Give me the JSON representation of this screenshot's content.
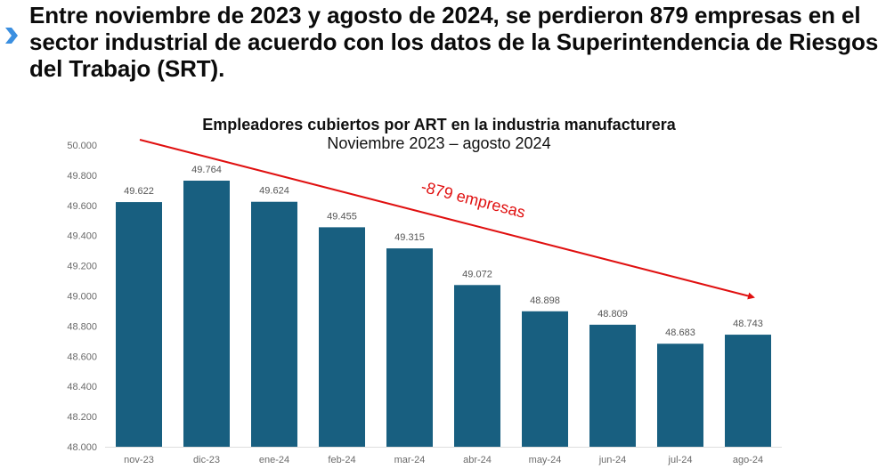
{
  "headline": {
    "icon": "chevron-right-icon",
    "text": "Entre noviembre de 2023 y agosto de 2024, se perdieron 879 empresas en el sector industrial de acuerdo con los datos de la Superintendencia de Riesgos del Trabajo (SRT)."
  },
  "colors": {
    "bar": "#185f80",
    "arrow": "#e01010",
    "bullet": "#3b8fe0",
    "axis_text": "#6a6a6a"
  },
  "chart_data": {
    "type": "bar",
    "title": "Empleadores cubiertos por ART en la industria manufacturera",
    "subtitle": "Noviembre 2023 – agosto 2024",
    "xlabel": "",
    "ylabel": "",
    "categories": [
      "nov-23",
      "dic-23",
      "ene-24",
      "feb-24",
      "mar-24",
      "abr-24",
      "may-24",
      "jun-24",
      "jul-24",
      "ago-24"
    ],
    "values": [
      49622,
      49764,
      49624,
      49455,
      49315,
      49072,
      48898,
      48809,
      48683,
      48743
    ],
    "value_labels": [
      "49.622",
      "49.764",
      "49.624",
      "49.455",
      "49.315",
      "49.072",
      "48.898",
      "48.809",
      "48.683",
      "48.743"
    ],
    "ylim": [
      48000,
      50000
    ],
    "yticks": [
      48000,
      48200,
      48400,
      48600,
      48800,
      49000,
      49200,
      49400,
      49600,
      49800,
      50000
    ],
    "ytick_labels": [
      "48.000",
      "48.200",
      "48.400",
      "48.600",
      "48.800",
      "49.000",
      "49.200",
      "49.400",
      "49.600",
      "49.800",
      "50.000"
    ],
    "grid": false,
    "legend": "none",
    "annotation": {
      "text": "-879 empresas",
      "type": "trend-arrow",
      "from_category": "nov-23",
      "to_category": "ago-24",
      "change": -879
    }
  }
}
